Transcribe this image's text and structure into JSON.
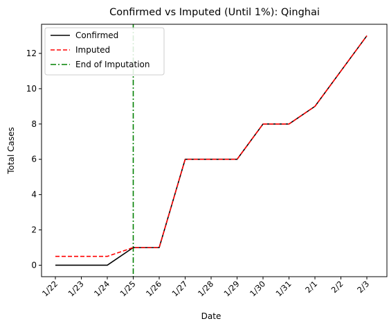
{
  "chart_data": {
    "type": "line",
    "title": "Confirmed vs Imputed (Until 1%): Qinghai",
    "xlabel": "Date",
    "ylabel": "Total Cases",
    "categories": [
      "1/22",
      "1/23",
      "1/24",
      "1/25",
      "1/26",
      "1/27",
      "1/28",
      "1/29",
      "1/30",
      "1/31",
      "2/1",
      "2/2",
      "2/3"
    ],
    "yticks": [
      0,
      2,
      4,
      6,
      8,
      10,
      12
    ],
    "ylim": [
      -0.65,
      13.65
    ],
    "grid": false,
    "legend_position": "top-left",
    "series": [
      {
        "name": "Confirmed",
        "color": "#000000",
        "style": "solid",
        "values": [
          0,
          0,
          0,
          1,
          1,
          6,
          6,
          6,
          8,
          8,
          9,
          11,
          13
        ]
      },
      {
        "name": "Imputed",
        "color": "#ff0000",
        "style": "dashed",
        "values": [
          0.5,
          0.5,
          0.5,
          1,
          1,
          6,
          6,
          6,
          8,
          8,
          9,
          11,
          13
        ]
      }
    ],
    "vline": {
      "name": "End of Imputation",
      "color": "#008000",
      "style": "dashdot",
      "at": "1/25"
    }
  }
}
